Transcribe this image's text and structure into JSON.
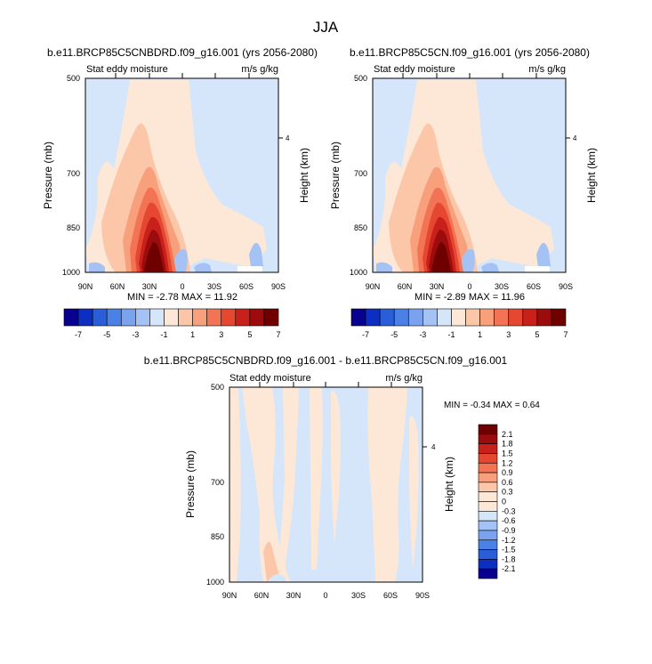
{
  "figure": {
    "title": "JJA"
  },
  "chart_data": [
    {
      "type": "heatmap",
      "title": "b.e11.BRCP85C5CNBDRD.f09_g16.001 (yrs 2056-2080)",
      "subtitle_left": "Stat eddy moisture",
      "subtitle_right": "m/s g/kg",
      "xlabel": "",
      "ylabel": "Pressure (mb)",
      "ylabel_right": "Height (km)",
      "x_ticks": [
        "90N",
        "60N",
        "30N",
        "0",
        "30S",
        "60S",
        "90S"
      ],
      "y_ticks": [
        "500",
        "700",
        "850",
        "1000"
      ],
      "y_ticks_right": [
        "4"
      ],
      "stats": "MIN = -2.78  MAX = 11.92",
      "legend_position": "bottom",
      "colorbar_labels": [
        "-7",
        "-5",
        "-3",
        "-1",
        "1",
        "3",
        "5",
        "7"
      ]
    },
    {
      "type": "heatmap",
      "title": "b.e11.BRCP85C5CN.f09_g16.001 (yrs 2056-2080)",
      "subtitle_left": "Stat eddy moisture",
      "subtitle_right": "m/s g/kg",
      "xlabel": "",
      "ylabel": "Pressure (mb)",
      "ylabel_right": "Height (km)",
      "x_ticks": [
        "90N",
        "60N",
        "30N",
        "0",
        "30S",
        "60S",
        "90S"
      ],
      "y_ticks": [
        "500",
        "700",
        "850",
        "1000"
      ],
      "y_ticks_right": [
        "4"
      ],
      "stats": "MIN = -2.89  MAX = 11.96",
      "legend_position": "bottom",
      "colorbar_labels": [
        "-7",
        "-5",
        "-3",
        "-1",
        "1",
        "3",
        "5",
        "7"
      ]
    },
    {
      "type": "heatmap",
      "title": "b.e11.BRCP85C5CNBDRD.f09_g16.001 - b.e11.BRCP85C5CN.f09_g16.001",
      "subtitle_left": "Stat eddy moisture",
      "subtitle_right": "m/s g/kg",
      "xlabel": "",
      "ylabel": "Pressure (mb)",
      "ylabel_right": "Height (km)",
      "x_ticks": [
        "90N",
        "60N",
        "30N",
        "0",
        "30S",
        "60S",
        "90S"
      ],
      "y_ticks": [
        "500",
        "700",
        "850",
        "1000"
      ],
      "y_ticks_right": [
        "4"
      ],
      "stats": "MIN = -0.34  MAX =   0.64",
      "legend_position": "right",
      "colorbar_labels": [
        "2.1",
        "1.8",
        "1.5",
        "1.2",
        "0.9",
        "0.6",
        "0.3",
        "0",
        "-0.3",
        "-0.6",
        "-0.9",
        "-1.2",
        "-1.5",
        "-1.8",
        "-2.1"
      ]
    }
  ],
  "colors": {
    "neg_levels": [
      "#08008f",
      "#0c2fc2",
      "#2a5ed9",
      "#4b80e6",
      "#7aa2ef",
      "#a5c2f4",
      "#d5e6fb"
    ],
    "pos_levels": [
      "#fde8d8",
      "#fbc7a8",
      "#f8a07c",
      "#f27454",
      "#e54730",
      "#c8201b",
      "#9c0c0c",
      "#6e0000"
    ],
    "bg_pos": "#fde8d8",
    "bg_neg": "#d5e6fb"
  }
}
